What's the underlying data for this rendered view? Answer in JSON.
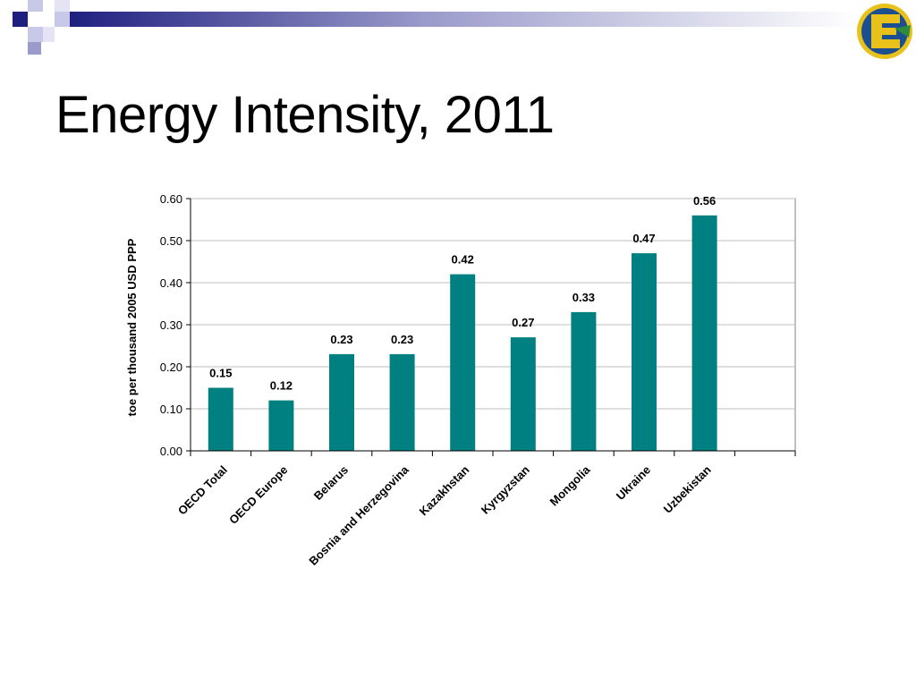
{
  "slide": {
    "title": "Energy Intensity, 2011",
    "logo_icon": "e-globe-logo-icon"
  },
  "colors": {
    "bar": "#008080",
    "header_dark": "#1f1f80",
    "header_light": "#c8c8e8",
    "grid": "#bfbfbf"
  },
  "chart_data": {
    "type": "bar",
    "title": "",
    "xlabel": "",
    "ylabel": "toe per thousand 2005 USD PPP",
    "categories": [
      "OECD Total",
      "OECD Europe",
      "Belarus",
      "Bosnia and Herzegovina",
      "Kazakhstan",
      "Kyrgyzstan",
      "Mongolia",
      "Ukraine",
      "Uzbekistan"
    ],
    "values": [
      0.15,
      0.12,
      0.23,
      0.23,
      0.42,
      0.27,
      0.33,
      0.47,
      0.56
    ],
    "value_labels": [
      "0.15",
      "0.12",
      "0.23",
      "0.23",
      "0.42",
      "0.27",
      "0.33",
      "0.47",
      "0.56"
    ],
    "ylim": [
      0,
      0.6
    ],
    "yticks": [
      "0.00",
      "0.10",
      "0.20",
      "0.30",
      "0.40",
      "0.50",
      "0.60"
    ],
    "grid": true,
    "legend": "none"
  }
}
